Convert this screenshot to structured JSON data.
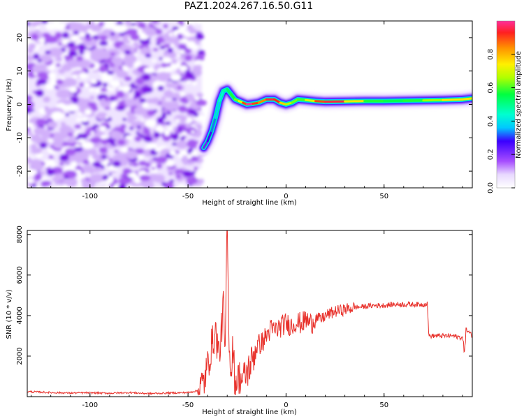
{
  "title": "PAZ1.2024.267.16.50.G11",
  "colors": {
    "snr_line": "#e8322c",
    "noise": "#8a2be2",
    "axis": "#000000"
  },
  "colorbar": {
    "label": "Normalized spectral amplitude",
    "ticks": [
      "0.0",
      "0.2",
      "0.4",
      "0.6",
      "0.8"
    ],
    "range": [
      0,
      1
    ],
    "colormap": "rainbow"
  },
  "chart_data": [
    {
      "type": "heatmap",
      "title": "PAZ1.2024.267.16.50.G11",
      "xlabel": "Height of straight line (km)",
      "ylabel": "Frequency (Hz)",
      "xlim": [
        -132,
        95
      ],
      "ylim": [
        -25,
        25
      ],
      "xticks": [
        -100,
        -50,
        0,
        50
      ],
      "xtick_labels": [
        "-100",
        "-50",
        "0",
        "50"
      ],
      "yticks": [
        -20,
        -10,
        0,
        10,
        20
      ],
      "ytick_labels": [
        "-20",
        "-10",
        "0",
        "10",
        "20"
      ],
      "noise_region_x": [
        -132,
        -43
      ],
      "ridge": {
        "x": [
          -42,
          -40,
          -38,
          -36,
          -34,
          -32,
          -30,
          -28,
          -26,
          -24,
          -22,
          -20,
          -17,
          -14,
          -10,
          -6,
          -3,
          0,
          3,
          6,
          10,
          15,
          20,
          30,
          40,
          50,
          60,
          70,
          80,
          90,
          95
        ],
        "y": [
          -13,
          -11,
          -8,
          -4,
          1,
          4,
          4.5,
          3,
          1.5,
          1,
          0.5,
          0,
          0.2,
          0.5,
          1.5,
          1.5,
          0.5,
          0,
          0.5,
          1.5,
          1.3,
          1,
          0.8,
          0.9,
          1,
          1,
          1.1,
          1.2,
          1.3,
          1.5,
          1.8
        ],
        "amplitude": [
          0.2,
          0.25,
          0.3,
          0.35,
          0.4,
          0.45,
          0.5,
          0.55,
          0.6,
          0.65,
          0.8,
          1,
          1,
          0.8,
          0.9,
          1,
          0.85,
          0.7,
          0.65,
          0.6,
          0.6,
          0.8,
          1,
          0.9,
          0.6,
          0.55,
          0.55,
          0.6,
          0.7,
          0.8,
          0.7
        ]
      }
    },
    {
      "type": "line",
      "xlabel": "Height of straight line (km)",
      "ylabel": "SNR (10 * v/v)",
      "xlim": [
        -132,
        95
      ],
      "ylim": [
        0,
        8200
      ],
      "xticks": [
        -100,
        -50,
        0,
        50
      ],
      "xtick_labels": [
        "-100",
        "-50",
        "0",
        "50"
      ],
      "yticks": [
        2000,
        4000,
        6000,
        8000
      ],
      "ytick_labels": [
        "2000",
        "4000",
        "6000",
        "8000"
      ],
      "series": [
        {
          "x": [
            -132,
            -120,
            -110,
            -100,
            -90,
            -80,
            -70,
            -60,
            -50,
            -45,
            -42,
            -40,
            -38,
            -36,
            -34,
            -32,
            -31,
            -30,
            -29,
            -28,
            -27,
            -26,
            -24,
            -22,
            -20,
            -18,
            -15,
            -12,
            -10,
            -8,
            -5,
            -2,
            0,
            3,
            5,
            8,
            10,
            13,
            15,
            18,
            20,
            25,
            30,
            35,
            40,
            45,
            50,
            55,
            60,
            65,
            70,
            72,
            73,
            75,
            80,
            85,
            90,
            91,
            92,
            95
          ],
          "y": [
            250,
            200,
            180,
            190,
            170,
            200,
            150,
            180,
            200,
            300,
            700,
            1500,
            2500,
            3200,
            2000,
            4500,
            2200,
            8200,
            3000,
            1200,
            2500,
            700,
            1000,
            800,
            1200,
            1600,
            2500,
            2700,
            3000,
            3300,
            3300,
            3500,
            3600,
            3500,
            3700,
            3600,
            3800,
            3600,
            3900,
            3800,
            4000,
            4200,
            4300,
            4400,
            4450,
            4500,
            4500,
            4550,
            4550,
            4550,
            4550,
            4600,
            3000,
            3000,
            3000,
            3000,
            2900,
            2300,
            3300,
            3000
          ]
        }
      ]
    }
  ]
}
